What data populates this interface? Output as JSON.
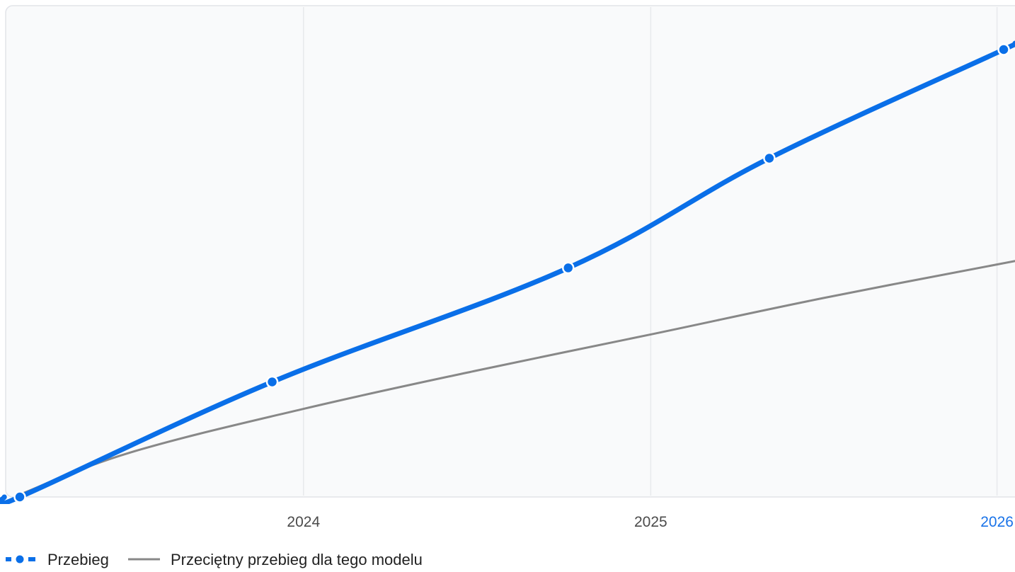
{
  "chart_data": {
    "type": "line",
    "x_axis": {
      "type": "date",
      "range": [
        "2023-03-01",
        "2026-01-20"
      ],
      "ticks": [
        {
          "value": "2024-01-01",
          "label": "2024",
          "highlight": false
        },
        {
          "value": "2025-01-01",
          "label": "2025",
          "highlight": false
        },
        {
          "value": "2026-01-01",
          "label": "2026",
          "highlight": true
        }
      ]
    },
    "y_axis": {
      "range": [
        0,
        100
      ],
      "labels_shown": false
    },
    "grid": {
      "vertical": true,
      "horizontal": false
    },
    "series": [
      {
        "name": "Przebieg",
        "color": "#0a6fe8",
        "style": "bold-with-markers",
        "points": [
          {
            "x": "2023-03-08",
            "y": 0
          },
          {
            "x": "2023-11-29",
            "y": 23.5
          },
          {
            "x": "2024-10-06",
            "y": 46.8
          },
          {
            "x": "2025-05-06",
            "y": 69.2
          },
          {
            "x": "2026-01-08",
            "y": 91.4
          },
          {
            "x": "2026-01-20",
            "y": 92.7
          }
        ]
      },
      {
        "name": "Przeciętny przebieg dla tego modelu",
        "color": "#888888",
        "style": "thin",
        "points": [
          {
            "x": "2023-03-08",
            "y": 0.5
          },
          {
            "x": "2023-07-01",
            "y": 9.0
          },
          {
            "x": "2024-01-01",
            "y": 18.0
          },
          {
            "x": "2024-07-01",
            "y": 25.8
          },
          {
            "x": "2025-01-01",
            "y": 33.2
          },
          {
            "x": "2025-07-01",
            "y": 40.6
          },
          {
            "x": "2026-01-20",
            "y": 48.2
          }
        ]
      }
    ],
    "legend": {
      "position": "bottom-left",
      "items": [
        {
          "label": "Przebieg",
          "color": "#0a6fe8",
          "style": "dashed-marker"
        },
        {
          "label": "Przeciętny przebieg dla tego modelu",
          "color": "#888888",
          "style": "line"
        }
      ]
    },
    "colors": {
      "plot_background": "#f9fafb",
      "plot_border": "#e2e4e8",
      "grid": "#e8e9ec",
      "tick_text": "#4b4b4b",
      "tick_highlight": "#1a73e8"
    }
  }
}
